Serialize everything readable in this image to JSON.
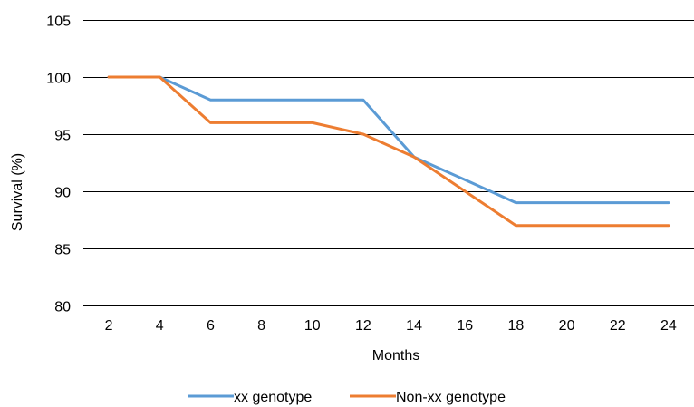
{
  "chart_data": {
    "type": "line",
    "title": "",
    "xlabel": "Months",
    "ylabel": "Survival (%)",
    "x": [
      2,
      4,
      6,
      8,
      10,
      12,
      14,
      16,
      18,
      20,
      22,
      24
    ],
    "ylim": [
      80,
      105
    ],
    "yticks": [
      80,
      85,
      90,
      95,
      100,
      105
    ],
    "grid": "horizontal",
    "legend_position": "bottom",
    "series": [
      {
        "name": "xx genotype",
        "color": "#5B9BD5",
        "values": [
          100,
          100,
          98,
          98,
          98,
          98,
          93,
          91,
          89,
          89,
          89,
          89
        ]
      },
      {
        "name": "Non-xx genotype",
        "color": "#ED7D31",
        "values": [
          100,
          100,
          96,
          96,
          96,
          95,
          93,
          90,
          87,
          87,
          87,
          87
        ]
      }
    ]
  }
}
